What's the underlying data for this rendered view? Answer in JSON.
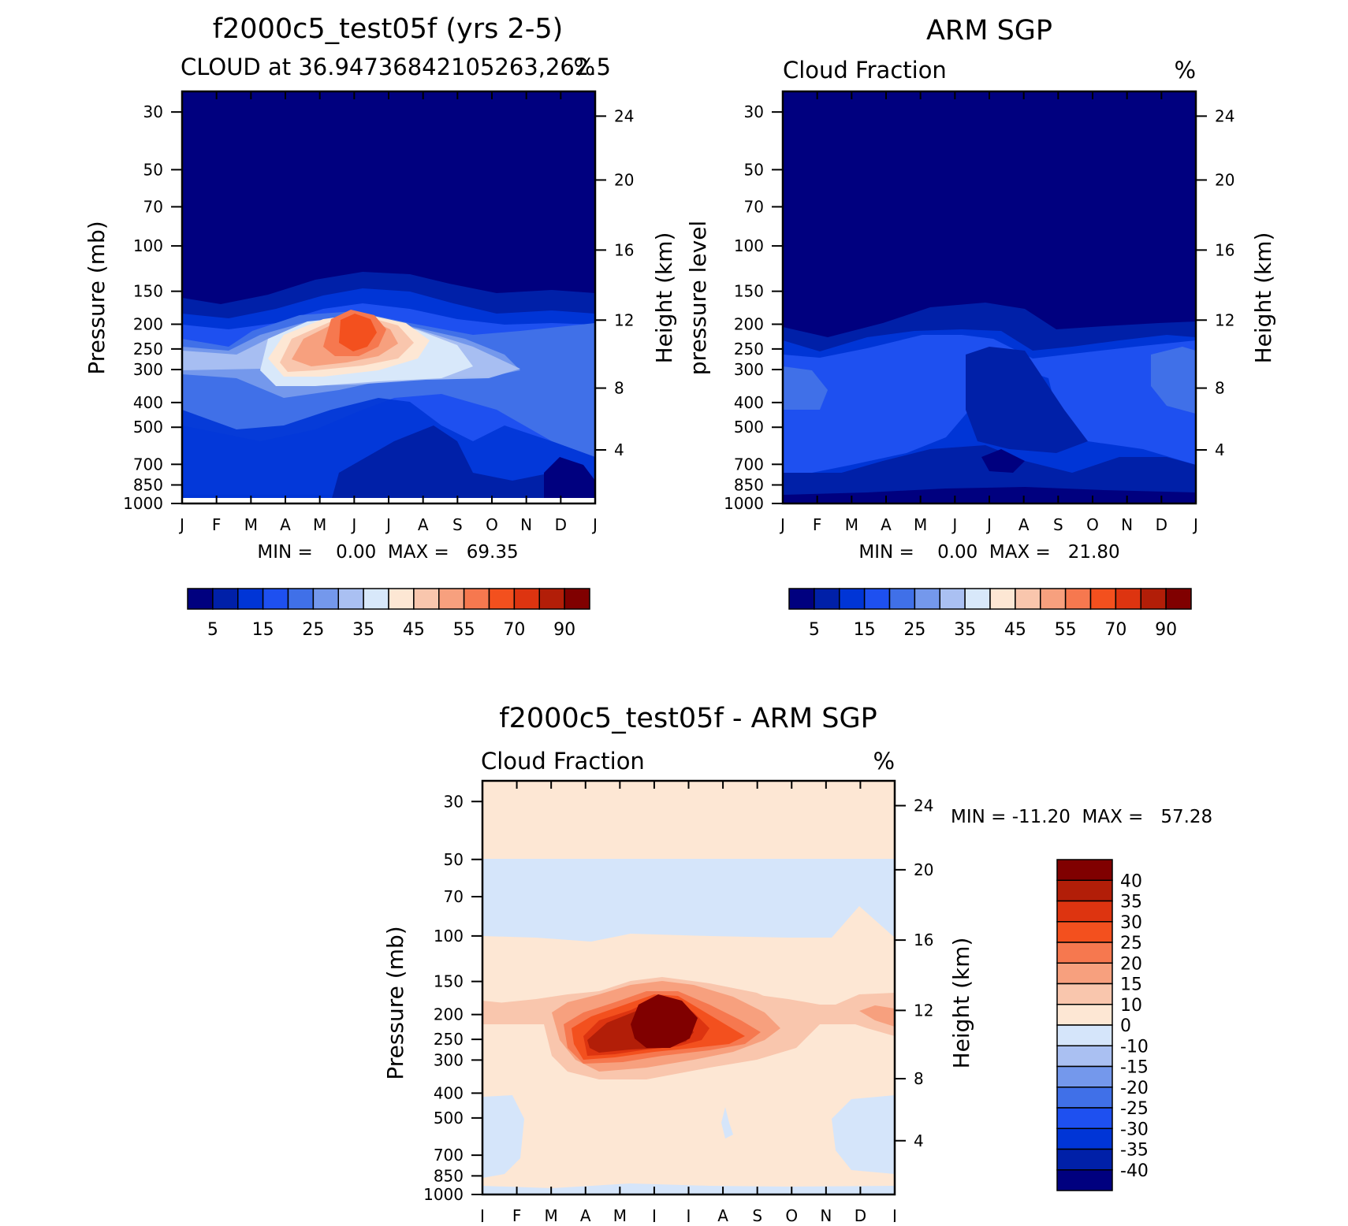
{
  "chart_data": [
    {
      "type": "contour",
      "title": "f2000c5_test05f (yrs 2-5)",
      "subtitle_left": "CLOUD at 36.94736842105263,262.5",
      "subtitle_right": "%",
      "ylabel_left": "Pressure (mb)",
      "ylabel_right": "Height (km)",
      "stats": "MIN =    0.00  MAX =   69.35",
      "x_ticks": [
        "J",
        "F",
        "M",
        "A",
        "M",
        "J",
        "J",
        "A",
        "S",
        "O",
        "N",
        "D",
        "J"
      ],
      "pressure_ticks": [
        "30",
        "50",
        "70",
        "100",
        "150",
        "200",
        "250",
        "300",
        "400",
        "500",
        "700",
        "850",
        "1000"
      ],
      "height_ticks": [
        "24",
        "20",
        "16",
        "12",
        "8",
        "4"
      ],
      "colorbar_labels": [
        "5",
        "15",
        "25",
        "35",
        "45",
        "55",
        "70",
        "90"
      ],
      "colormap": "sequential",
      "peak": {
        "month": "J",
        "pressure_mb": 225,
        "value": 69.35
      }
    },
    {
      "type": "contour",
      "title": "ARM SGP",
      "subtitle_left": "Cloud Fraction",
      "subtitle_right": "%",
      "ylabel_left": "pressure level",
      "ylabel_right": "Height (km)",
      "stats": "MIN =    0.00  MAX =   21.80",
      "x_ticks": [
        "J",
        "F",
        "M",
        "A",
        "M",
        "J",
        "J",
        "A",
        "S",
        "O",
        "N",
        "D",
        "J"
      ],
      "pressure_ticks": [
        "30",
        "50",
        "70",
        "100",
        "150",
        "200",
        "250",
        "300",
        "400",
        "500",
        "700",
        "850",
        "1000"
      ],
      "height_ticks": [
        "24",
        "20",
        "16",
        "12",
        "8",
        "4"
      ],
      "colorbar_labels": [
        "5",
        "15",
        "25",
        "35",
        "45",
        "55",
        "70",
        "90"
      ],
      "colormap": "sequential"
    },
    {
      "type": "contour",
      "title": "f2000c5_test05f - ARM SGP",
      "subtitle_left": "Cloud Fraction",
      "subtitle_right": "%",
      "ylabel_left": "Pressure (mb)",
      "ylabel_right": "Height (km)",
      "stats": "MIN = -11.20  MAX =   57.28",
      "x_ticks": [
        "J",
        "F",
        "M",
        "A",
        "M",
        "J",
        "J",
        "A",
        "S",
        "O",
        "N",
        "D",
        "J"
      ],
      "pressure_ticks": [
        "30",
        "50",
        "70",
        "100",
        "150",
        "200",
        "250",
        "300",
        "400",
        "500",
        "700",
        "850",
        "1000"
      ],
      "height_ticks": [
        "24",
        "20",
        "16",
        "12",
        "8",
        "4"
      ],
      "colorbar_labels": [
        "40",
        "35",
        "30",
        "25",
        "20",
        "15",
        "10",
        "0",
        "-10",
        "-15",
        "-20",
        "-25",
        "-30",
        "-35",
        "-40"
      ],
      "colormap": "diverging",
      "peak": {
        "month": "J",
        "pressure_mb": 225,
        "value": 57.28
      }
    }
  ],
  "colors": {
    "seq": [
      "#00007f",
      "#0020a8",
      "#0035d6",
      "#1e50f0",
      "#4070e8",
      "#7498ec",
      "#aac0f2",
      "#d8e8fa",
      "#fde7d4",
      "#f9c6ad",
      "#f7a07e",
      "#f6784f",
      "#f3501e",
      "#dd3410",
      "#b21e08",
      "#800000"
    ],
    "div": [
      "#800000",
      "#b21e08",
      "#dd3410",
      "#f3501e",
      "#f6784f",
      "#f7a07e",
      "#f9c6ad",
      "#fde7d4",
      "#d5e5fa",
      "#aac0f2",
      "#7498ec",
      "#4070e8",
      "#1e50f0",
      "#0035d6",
      "#0020a8",
      "#00007f"
    ]
  }
}
